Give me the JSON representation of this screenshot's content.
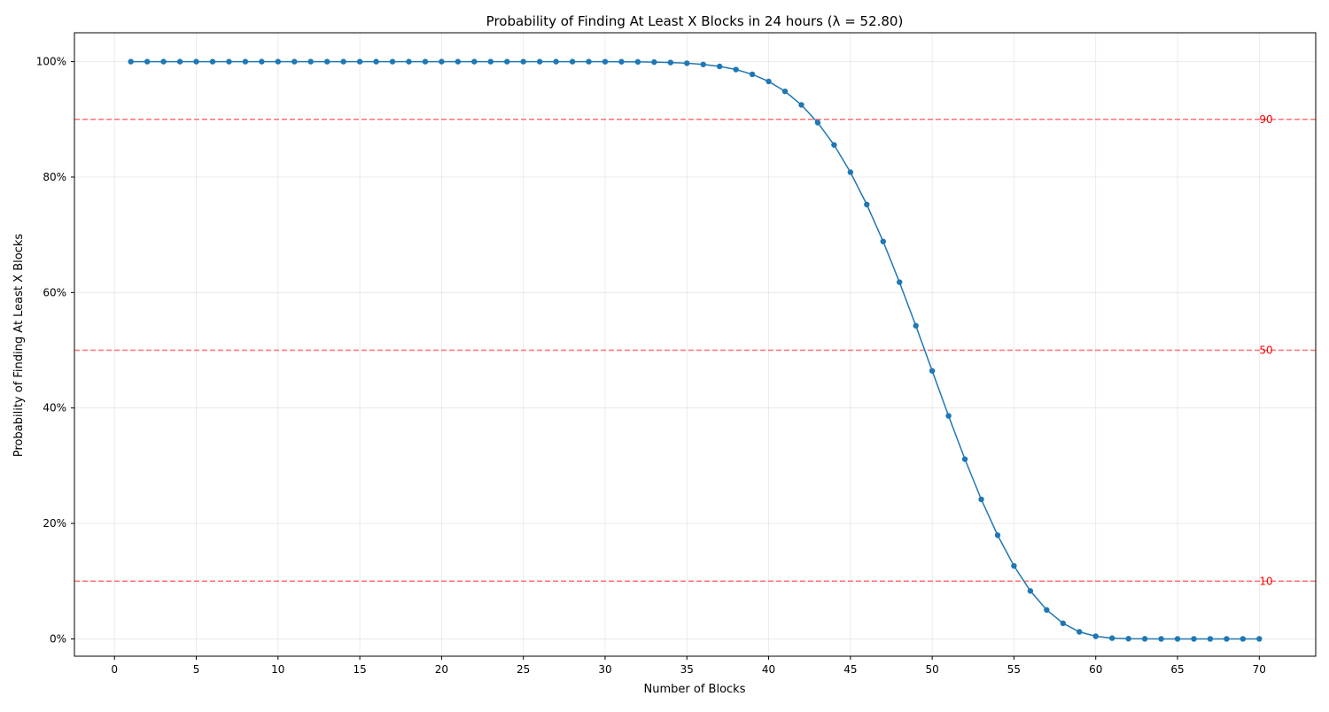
{
  "chart_data": {
    "type": "line",
    "title": "Probability of Finding At Least X Blocks in 24 hours (λ = 52.80)",
    "xlabel": "Number of Blocks",
    "ylabel": "Probability of Finding At Least X Blocks",
    "xlim": [
      -2.45,
      73.45
    ],
    "ylim": [
      -0.03,
      1.05
    ],
    "x_ticks": [
      0,
      5,
      10,
      15,
      20,
      25,
      30,
      35,
      40,
      45,
      50,
      55,
      60,
      65,
      70
    ],
    "y_ticks": [
      0,
      0.2,
      0.4,
      0.6,
      0.8,
      1.0
    ],
    "y_tick_labels": [
      "0%",
      "20%",
      "40%",
      "60%",
      "80%",
      "100%"
    ],
    "grid": true,
    "series": [
      {
        "color": "#1f77b4",
        "x": [
          1,
          2,
          3,
          4,
          5,
          6,
          7,
          8,
          9,
          10,
          11,
          12,
          13,
          14,
          15,
          16,
          17,
          18,
          19,
          20,
          21,
          22,
          23,
          24,
          25,
          26,
          27,
          28,
          29,
          30,
          31,
          32,
          33,
          34,
          35,
          36,
          37,
          38,
          39,
          40,
          41,
          42,
          43,
          44,
          45,
          46,
          47,
          48,
          49,
          50,
          51,
          52,
          53,
          54,
          55,
          56,
          57,
          58,
          59,
          60,
          61,
          62,
          63,
          64,
          65,
          66,
          67,
          68,
          69,
          70
        ],
        "values": [
          1,
          1,
          1,
          1,
          1,
          1,
          1,
          1,
          1,
          1,
          1,
          1,
          1,
          1,
          1,
          1,
          1,
          1,
          1,
          1,
          1,
          1,
          1,
          1,
          1,
          1,
          1,
          1,
          1,
          0.9999,
          0.9998,
          0.9996,
          0.9992,
          0.9985,
          0.9972,
          0.9951,
          0.9917,
          0.9863,
          0.978,
          0.9657,
          0.9485,
          0.9251,
          0.8944,
          0.8557,
          0.8084,
          0.7524,
          0.6885,
          0.6179,
          0.5424,
          0.4643,
          0.3864,
          0.3113,
          0.2417,
          0.1796,
          0.1264,
          0.0831,
          0.0502,
          0.027,
          0.0122,
          0.0046,
          0.0013,
          0.0003,
          0.0001,
          0,
          0,
          0,
          0,
          0,
          0,
          0
        ]
      }
    ],
    "reference_lines": [
      {
        "y": 0.9,
        "label": "90",
        "color": "#ff0000",
        "style": "dashed"
      },
      {
        "y": 0.5,
        "label": "50",
        "color": "#ff0000",
        "style": "dashed"
      },
      {
        "y": 0.1,
        "label": "10",
        "color": "#ff0000",
        "style": "dashed"
      }
    ]
  }
}
